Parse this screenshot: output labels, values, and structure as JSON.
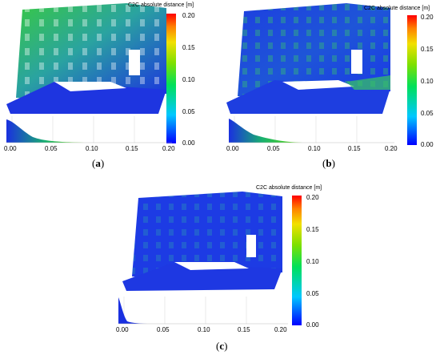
{
  "scale": {
    "title": "C2C absolute distance [m]",
    "ticks": [
      "0.20",
      "0.15",
      "0.10",
      "0.05",
      "0.00"
    ]
  },
  "histogram_axis": [
    "0.00",
    "0.05",
    "0.10",
    "0.15",
    "0.20"
  ],
  "captions": {
    "a": "a",
    "b": "b",
    "c": "c"
  },
  "colors": {
    "low": "#0000ff",
    "mid": "#00e05a",
    "high": "#ff0000"
  }
}
